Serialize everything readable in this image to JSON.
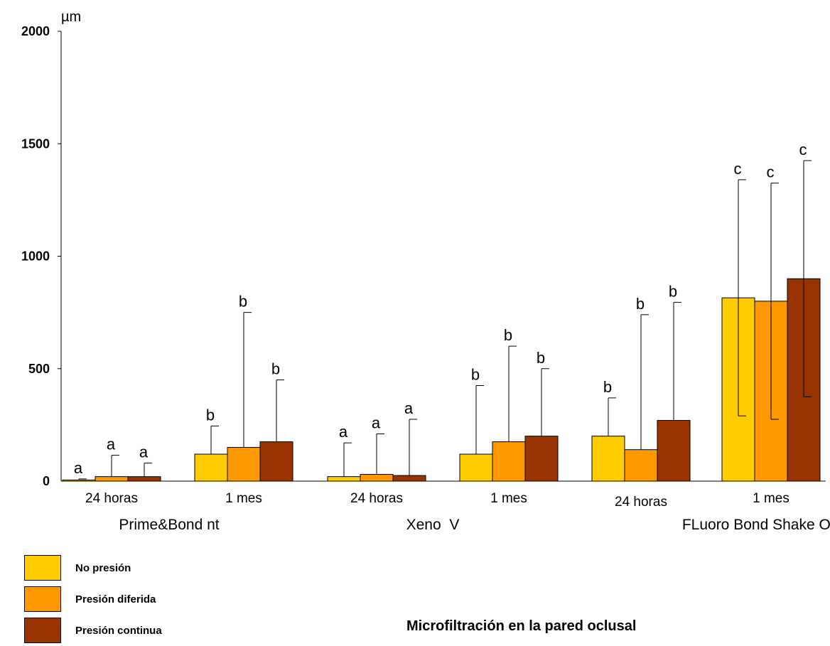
{
  "chart_data": {
    "type": "bar",
    "title": "Microfiltración en la pared oclusal",
    "ylabel": "µm",
    "ylim": [
      0,
      2000
    ],
    "yticks": [
      "0",
      "500",
      "1000",
      "1500",
      "2000"
    ],
    "groups": [
      {
        "name": "Prime&Bond nt",
        "subgroups": [
          "24 horas",
          "1 mes"
        ]
      },
      {
        "name": "Xeno  V",
        "subgroups": [
          "24 horas",
          "1 mes"
        ]
      },
      {
        "name": "FLuoro Bond Shake One",
        "subgroups": [
          "24 horas",
          "1 mes"
        ]
      }
    ],
    "categories": [
      "24 horas",
      "1 mes",
      "24 horas",
      "1 mes",
      "24 horas",
      "1 mes"
    ],
    "series": [
      {
        "name": "No presión",
        "color": "#FFCC00",
        "values": [
          5,
          120,
          20,
          120,
          200,
          815
        ],
        "error_upper": [
          10,
          245,
          170,
          425,
          370,
          1340
        ],
        "letters": [
          "a",
          "b",
          "a",
          "b",
          "b",
          "c"
        ]
      },
      {
        "name": "Presión diferida",
        "color": "#FF9900",
        "values": [
          20,
          150,
          30,
          175,
          140,
          800
        ],
        "error_upper": [
          115,
          750,
          210,
          600,
          740,
          1325
        ],
        "letters": [
          "a",
          "b",
          "a",
          "b",
          "b",
          "c"
        ]
      },
      {
        "name": "Presión continua",
        "color": "#993300",
        "values": [
          20,
          175,
          25,
          200,
          270,
          900
        ],
        "error_upper": [
          80,
          450,
          275,
          500,
          795,
          1425
        ],
        "letters": [
          "a",
          "b",
          "a",
          "b",
          "b",
          "c"
        ]
      }
    ],
    "error_lower_last_group": [
      290,
      275,
      375
    ],
    "legend_position": "bottom-left",
    "grid": false
  }
}
